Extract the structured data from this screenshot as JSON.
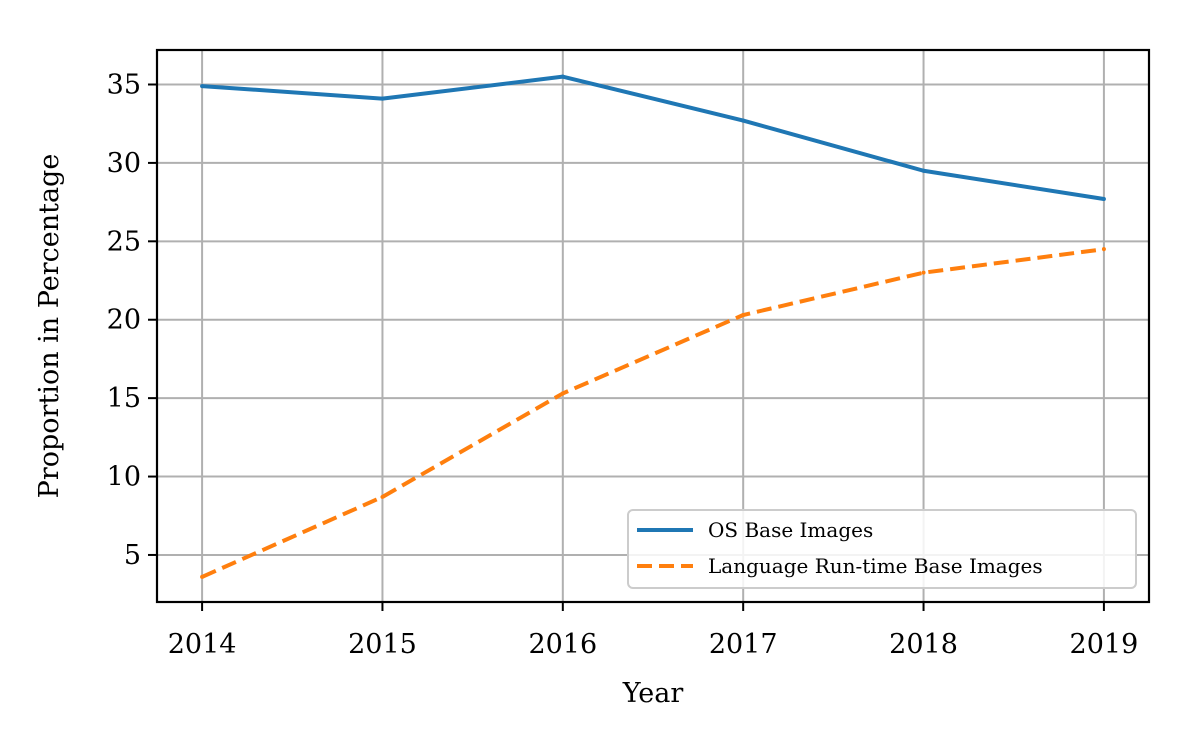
{
  "chart_data": {
    "type": "line",
    "x": [
      2014,
      2015,
      2016,
      2017,
      2018,
      2019
    ],
    "series": [
      {
        "name": "OS Base Images",
        "values": [
          34.9,
          34.1,
          35.5,
          32.7,
          29.5,
          27.7
        ],
        "color": "#1f77b4",
        "line_style": "solid"
      },
      {
        "name": "Language Run-time Base Images",
        "values": [
          3.6,
          8.7,
          15.3,
          20.3,
          23.0,
          24.5
        ],
        "color": "#ff7f0e",
        "line_style": "dashed"
      }
    ],
    "xlabel": "Year",
    "ylabel": "Proportion in Percentage",
    "x_ticks": [
      "2014",
      "2015",
      "2016",
      "2017",
      "2018",
      "2019"
    ],
    "y_ticks": [
      "5",
      "10",
      "15",
      "20",
      "25",
      "30",
      "35"
    ],
    "xlim": [
      2013.75,
      2019.25
    ],
    "ylim": [
      2.0,
      37.2
    ],
    "grid": true,
    "legend_position": "bottom-right"
  }
}
